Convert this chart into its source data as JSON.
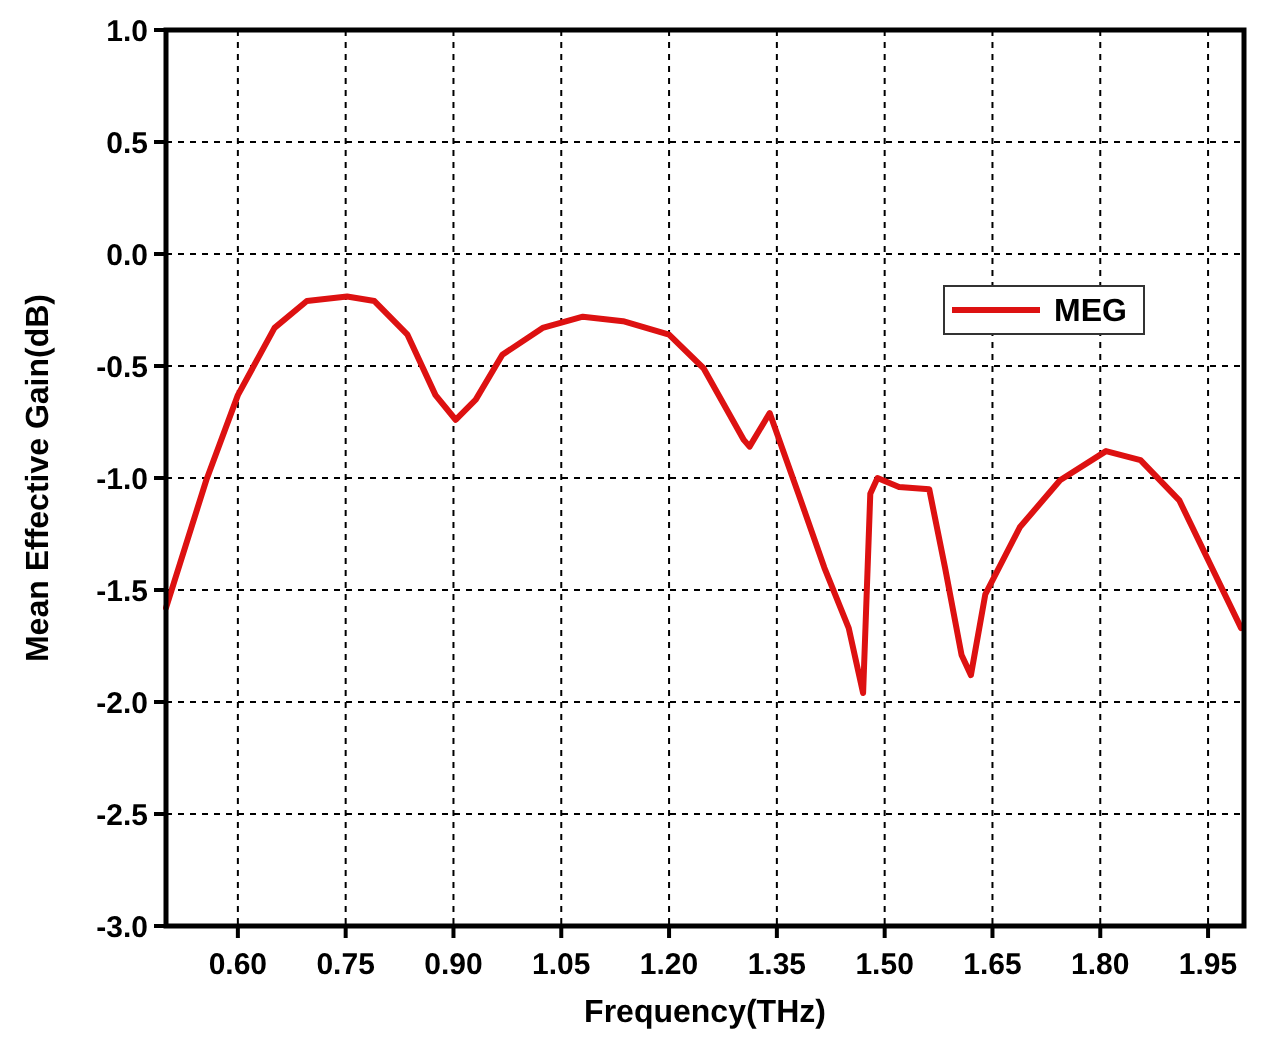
{
  "chart_data": {
    "type": "line",
    "xlabel": "Frequency(THz)",
    "ylabel": "Mean Effective Gain(dB)",
    "xlim": [
      0.5,
      2.0
    ],
    "xticks": [
      {
        "value": 0.6,
        "label": "0.60"
      },
      {
        "value": 0.75,
        "label": "0.75"
      },
      {
        "value": 0.9,
        "label": "0.90"
      },
      {
        "value": 1.05,
        "label": "1.05"
      },
      {
        "value": 1.2,
        "label": "1.20"
      },
      {
        "value": 1.35,
        "label": "1.35"
      },
      {
        "value": 1.5,
        "label": "1.50"
      },
      {
        "value": 1.65,
        "label": "1.65"
      },
      {
        "value": 1.8,
        "label": "1.80"
      },
      {
        "value": 1.95,
        "label": "1.95"
      }
    ],
    "ylim": [
      -3.0,
      1.0
    ],
    "yticks": [
      {
        "value": 1,
        "label": "1.0"
      },
      {
        "value": 0.5,
        "label": "0.5"
      },
      {
        "value": 0,
        "label": "0.0"
      },
      {
        "value": -0.5,
        "label": "-0.5"
      },
      {
        "value": -1,
        "label": "-1.0"
      },
      {
        "value": -1.5,
        "label": "-1.5"
      },
      {
        "value": -2,
        "label": "-2.0"
      },
      {
        "value": -2.5,
        "label": "-2.5"
      },
      {
        "value": -3,
        "label": "-3.0"
      }
    ],
    "grid": true,
    "legend": "top right",
    "marker": "none",
    "line_style": "solid",
    "series": [
      {
        "name": "MEG",
        "color": "#dd1111",
        "x": [
          0.5,
          0.556,
          0.6,
          0.651,
          0.696,
          0.752,
          0.79,
          0.836,
          0.875,
          0.903,
          0.931,
          0.968,
          1.024,
          1.08,
          1.136,
          1.2,
          1.248,
          1.304,
          1.312,
          1.34,
          1.38,
          1.416,
          1.45,
          1.47,
          1.48,
          1.49,
          1.52,
          1.562,
          1.584,
          1.607,
          1.62,
          1.64,
          1.688,
          1.744,
          1.808,
          1.856,
          1.91,
          1.996
        ],
        "values": [
          -1.58,
          -1.01,
          -0.63,
          -0.33,
          -0.21,
          -0.19,
          -0.21,
          -0.36,
          -0.63,
          -0.74,
          -0.65,
          -0.45,
          -0.33,
          -0.28,
          -0.3,
          -0.36,
          -0.51,
          -0.83,
          -0.86,
          -0.71,
          -1.07,
          -1.4,
          -1.67,
          -1.96,
          -1.07,
          -1.0,
          -1.04,
          -1.05,
          -1.4,
          -1.79,
          -1.88,
          -1.52,
          -1.22,
          -1.01,
          -0.88,
          -0.92,
          -1.1,
          -1.67
        ]
      }
    ]
  }
}
